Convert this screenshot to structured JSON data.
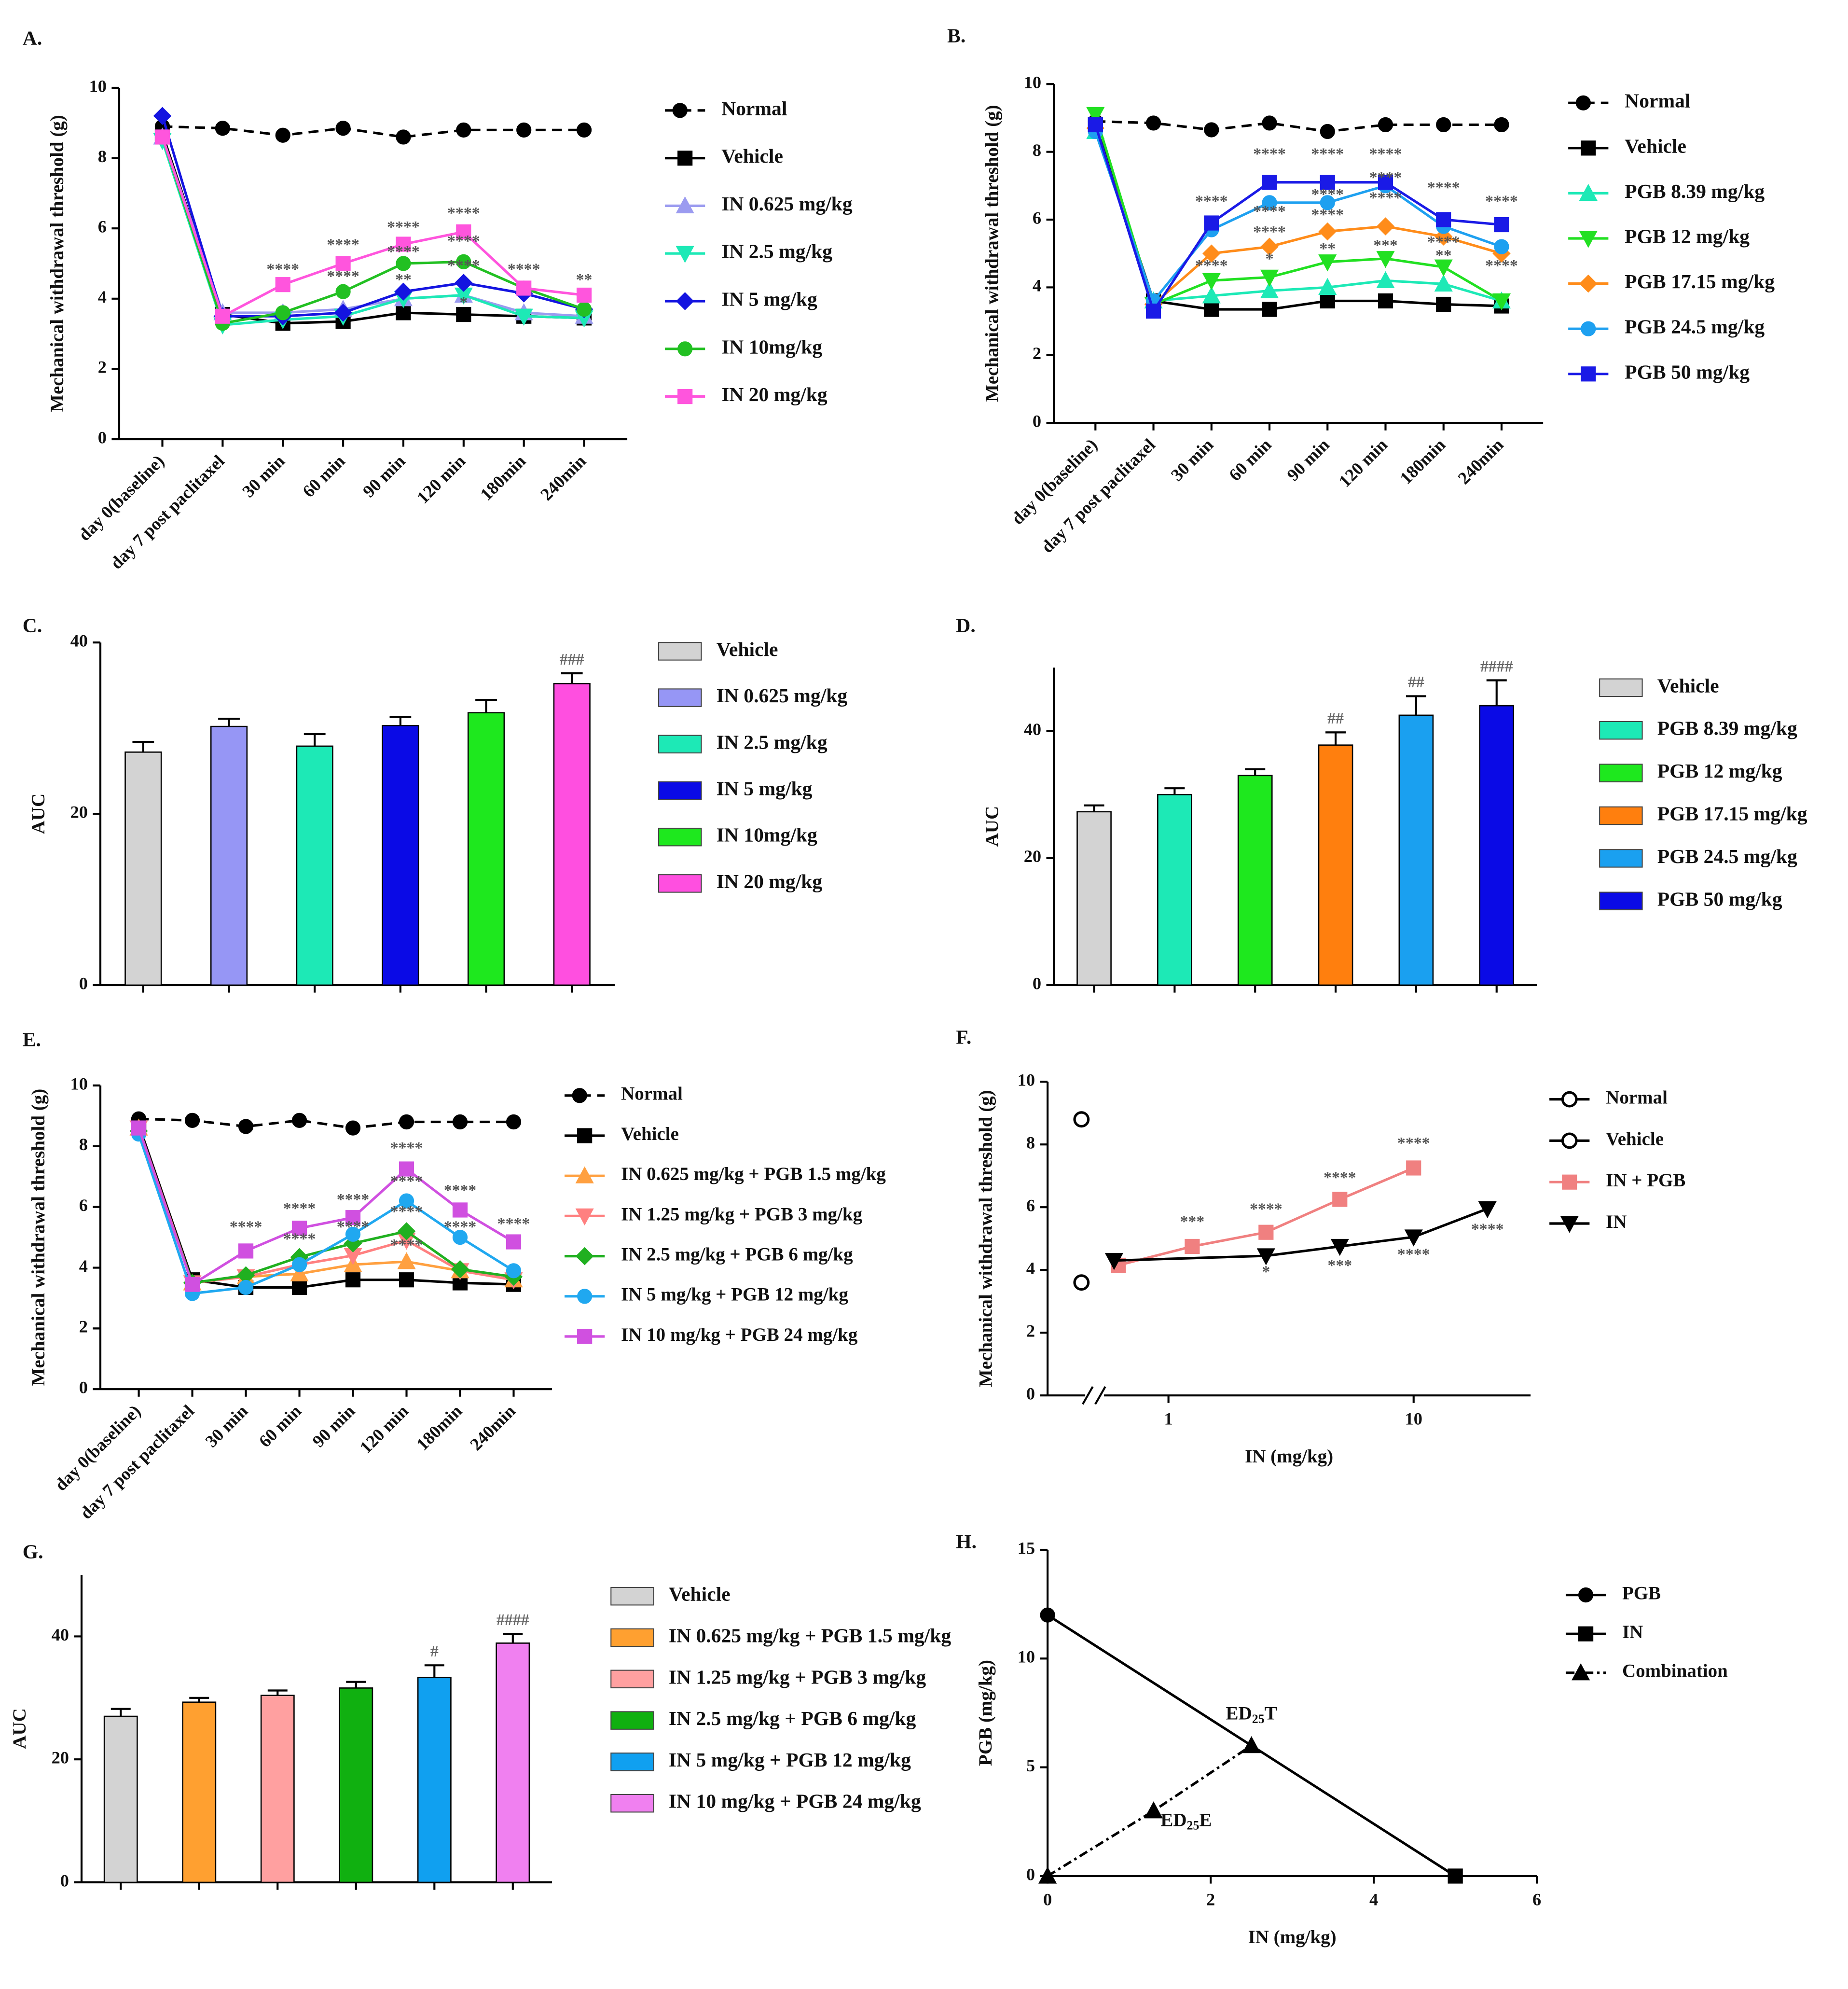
{
  "chart_data": [
    {
      "type": "line",
      "label": "A.",
      "ylabel": "Mechanical withdrawal threshold (g)",
      "categories": [
        "day 0(baseline)",
        "day 7 post paclitaxel",
        "30 min",
        "60 min",
        "90 min",
        "120 min",
        "180min",
        "240min"
      ],
      "ylim": [
        0,
        10
      ],
      "yticks": [
        0,
        2,
        4,
        6,
        8,
        10
      ],
      "series": [
        {
          "name": "Normal",
          "color": "#000000",
          "marker": "circle",
          "dash": "dashed",
          "values": [
            8.9,
            8.85,
            8.65,
            8.85,
            8.6,
            8.8,
            8.8,
            8.8
          ]
        },
        {
          "name": "Vehicle",
          "color": "#000000",
          "marker": "square",
          "values": [
            8.7,
            3.55,
            3.3,
            3.35,
            3.6,
            3.55,
            3.5,
            3.45
          ]
        },
        {
          "name": "IN 0.625 mg/kg",
          "color": "#9b9bf0",
          "marker": "triangle",
          "values": [
            8.6,
            3.6,
            3.6,
            3.7,
            4.0,
            4.1,
            3.6,
            3.5
          ]
        },
        {
          "name": "IN 2.5 mg/kg",
          "color": "#1de9b6",
          "marker": "down",
          "values": [
            8.5,
            3.25,
            3.4,
            3.5,
            4.0,
            4.1,
            3.5,
            3.45
          ]
        },
        {
          "name": "IN 5 mg/kg",
          "color": "#1414e0",
          "marker": "diamond",
          "values": [
            9.2,
            3.5,
            3.5,
            3.6,
            4.2,
            4.45,
            4.15,
            3.7
          ]
        },
        {
          "name": "IN 10mg/kg",
          "color": "#22c022",
          "marker": "circle",
          "values": [
            8.6,
            3.3,
            3.6,
            4.2,
            5.0,
            5.05,
            4.3,
            3.7
          ]
        },
        {
          "name": "IN 20 mg/kg",
          "color": "#ff55dd",
          "marker": "square",
          "values": [
            8.6,
            3.5,
            4.4,
            5.0,
            5.55,
            5.9,
            4.3,
            4.1
          ]
        }
      ],
      "annotations": [
        {
          "text": "****",
          "x": "30 min",
          "y": 4.8
        },
        {
          "text": "****",
          "x": "60 min",
          "y": 5.5
        },
        {
          "text": "****",
          "x": "60 min",
          "y": 4.6
        },
        {
          "text": "****",
          "x": "90 min",
          "y": 6.0
        },
        {
          "text": "****",
          "x": "90 min",
          "y": 5.3
        },
        {
          "text": "**",
          "x": "90 min",
          "y": 4.5
        },
        {
          "text": "****",
          "x": "120 min",
          "y": 6.4
        },
        {
          "text": "****",
          "x": "120 min",
          "y": 5.6
        },
        {
          "text": "****",
          "x": "120 min",
          "y": 4.9
        },
        {
          "text": "*",
          "x": "120 min",
          "y": 3.85
        },
        {
          "text": "****",
          "x": "180min",
          "y": 4.8
        },
        {
          "text": "**",
          "x": "240min",
          "y": 4.5
        }
      ]
    },
    {
      "type": "line",
      "label": "B.",
      "ylabel": "Mechanical withdrawal threshold (g)",
      "categories": [
        "day 0(baseline)",
        "day 7 post paclitaxel",
        "30 min",
        "60 min",
        "90 min",
        "120 min",
        "180min",
        "240min"
      ],
      "ylim": [
        0,
        10
      ],
      "yticks": [
        0,
        2,
        4,
        6,
        8,
        10
      ],
      "series": [
        {
          "name": "Normal",
          "color": "#000000",
          "marker": "circle",
          "dash": "dashed",
          "values": [
            8.9,
            8.85,
            8.65,
            8.85,
            8.6,
            8.8,
            8.8,
            8.8
          ]
        },
        {
          "name": "Vehicle",
          "color": "#000000",
          "marker": "square",
          "values": [
            8.8,
            3.6,
            3.35,
            3.35,
            3.6,
            3.6,
            3.5,
            3.45
          ]
        },
        {
          "name": "PGB 8.39 mg/kg",
          "color": "#1de9b6",
          "marker": "triangle",
          "values": [
            8.6,
            3.6,
            3.75,
            3.9,
            4.0,
            4.2,
            4.1,
            3.6
          ]
        },
        {
          "name": "PGB 12 mg/kg",
          "color": "#22e022",
          "marker": "down",
          "values": [
            9.1,
            3.5,
            4.2,
            4.3,
            4.75,
            4.85,
            4.6,
            3.6
          ]
        },
        {
          "name": "PGB 17.15 mg/kg",
          "color": "#ff8c1a",
          "marker": "diamond",
          "values": [
            8.7,
            3.5,
            5.0,
            5.2,
            5.65,
            5.8,
            5.5,
            5.0
          ]
        },
        {
          "name": "PGB 24.5 mg/kg",
          "color": "#1ea0f0",
          "marker": "circle",
          "values": [
            8.6,
            3.6,
            5.7,
            6.5,
            6.5,
            7.0,
            5.8,
            5.2
          ]
        },
        {
          "name": "PGB 50 mg/kg",
          "color": "#1a1ae6",
          "marker": "square",
          "values": [
            8.8,
            3.3,
            5.9,
            7.1,
            7.1,
            7.1,
            6.0,
            5.85
          ]
        }
      ],
      "annotations": [
        {
          "text": "****",
          "x": "30 min",
          "y": 6.5
        },
        {
          "text": "****",
          "x": "30 min",
          "y": 4.6
        },
        {
          "text": "****",
          "x": "60 min",
          "y": 7.9
        },
        {
          "text": "****",
          "x": "60 min",
          "y": 6.2
        },
        {
          "text": "****",
          "x": "60 min",
          "y": 5.6
        },
        {
          "text": "*",
          "x": "60 min",
          "y": 4.8
        },
        {
          "text": "****",
          "x": "90 min",
          "y": 7.9
        },
        {
          "text": "****",
          "x": "90 min",
          "y": 6.7
        },
        {
          "text": "****",
          "x": "90 min",
          "y": 6.1
        },
        {
          "text": "**",
          "x": "90 min",
          "y": 5.1
        },
        {
          "text": "****",
          "x": "120 min",
          "y": 7.9
        },
        {
          "text": "****",
          "x": "120 min",
          "y": 7.2
        },
        {
          "text": "****",
          "x": "120 min",
          "y": 6.6
        },
        {
          "text": "***",
          "x": "120 min",
          "y": 5.2
        },
        {
          "text": "****",
          "x": "180min",
          "y": 6.9
        },
        {
          "text": "****",
          "x": "180min",
          "y": 5.3
        },
        {
          "text": "**",
          "x": "180min",
          "y": 4.9
        },
        {
          "text": "****",
          "x": "240min",
          "y": 6.5
        },
        {
          "text": "****",
          "x": "240min",
          "y": 4.6
        }
      ]
    },
    {
      "type": "bar",
      "label": "C.",
      "ylabel": "AUC",
      "categories": [
        "Vehicle",
        "IN 0.625 mg/kg",
        "IN 2.5 mg/kg",
        "IN 5 mg/kg",
        "IN 10mg/kg",
        "IN 20 mg/kg"
      ],
      "values": [
        27.2,
        30.2,
        27.9,
        30.3,
        31.8,
        35.2
      ],
      "errors": [
        1.2,
        0.9,
        1.4,
        1.0,
        1.5,
        1.2
      ],
      "colors": [
        "#d3d3d3",
        "#9696f5",
        "#1de9b6",
        "#0a0ae6",
        "#1ee81e",
        "#ff4fe0"
      ],
      "ylim": [
        0,
        40
      ],
      "yticks": [
        0,
        20,
        40
      ],
      "annotations": [
        {
          "text": "###",
          "x": "IN 20 mg/kg"
        }
      ]
    },
    {
      "type": "bar",
      "label": "D.",
      "ylabel": "AUC",
      "categories": [
        "Vehicle",
        "PGB 8.39 mg/kg",
        "PGB 12 mg/kg",
        "PGB 17.15 mg/kg",
        "PGB 24.5 mg/kg",
        "PGB 50 mg/kg"
      ],
      "values": [
        27.3,
        30.0,
        33.0,
        37.8,
        42.5,
        44.0
      ],
      "errors": [
        1.0,
        1.0,
        1.0,
        2.0,
        3.0,
        4.0
      ],
      "colors": [
        "#d3d3d3",
        "#1de9b6",
        "#1ee81e",
        "#ff7f0e",
        "#1aa0f0",
        "#0a0ae6"
      ],
      "ylim": [
        0,
        50
      ],
      "yticks": [
        0,
        20,
        40
      ],
      "annotations": [
        {
          "text": "##",
          "x": "PGB 17.15 mg/kg"
        },
        {
          "text": "##",
          "x": "PGB 24.5 mg/kg"
        },
        {
          "text": "####",
          "x": "PGB 50 mg/kg"
        }
      ]
    },
    {
      "type": "line",
      "label": "E.",
      "ylabel": "Mechanical withdrawal threshold (g)",
      "categories": [
        "day 0(baseline)",
        "day 7 post paclitaxel",
        "30 min",
        "60 min",
        "90 min",
        "120 min",
        "180min",
        "240min"
      ],
      "ylim": [
        0,
        10
      ],
      "yticks": [
        0,
        2,
        4,
        6,
        8,
        10
      ],
      "series": [
        {
          "name": "Normal",
          "color": "#000000",
          "marker": "circle",
          "dash": "dashed",
          "values": [
            8.9,
            8.85,
            8.65,
            8.85,
            8.6,
            8.8,
            8.8,
            8.8
          ]
        },
        {
          "name": "Vehicle",
          "color": "#000000",
          "marker": "square",
          "values": [
            8.7,
            3.6,
            3.35,
            3.35,
            3.6,
            3.6,
            3.5,
            3.45
          ]
        },
        {
          "name": "IN 0.625 mg/kg + PGB 1.5 mg/kg",
          "color": "#ffa040",
          "marker": "triangle",
          "values": [
            8.6,
            3.5,
            3.7,
            3.8,
            4.1,
            4.2,
            3.9,
            3.6
          ]
        },
        {
          "name": "IN 1.25 mg/kg + PGB 3 mg/kg",
          "color": "#ff8080",
          "marker": "down",
          "values": [
            8.6,
            3.5,
            3.7,
            4.1,
            4.4,
            4.9,
            3.9,
            3.6
          ]
        },
        {
          "name": "IN 2.5 mg/kg + PGB 6 mg/kg",
          "color": "#20b020",
          "marker": "diamond",
          "values": [
            8.5,
            3.5,
            3.75,
            4.35,
            4.8,
            5.2,
            3.95,
            3.7
          ]
        },
        {
          "name": "IN 5 mg/kg + PGB 12 mg/kg",
          "color": "#20a8f0",
          "marker": "circle",
          "values": [
            8.4,
            3.15,
            3.35,
            4.1,
            5.1,
            6.2,
            5.0,
            3.9
          ]
        },
        {
          "name": "IN 10 mg/kg + PGB 24 mg/kg",
          "color": "#d050e0",
          "marker": "square",
          "values": [
            8.6,
            3.45,
            4.55,
            5.3,
            5.65,
            7.25,
            5.9,
            4.85
          ]
        }
      ],
      "annotations": [
        {
          "text": "****",
          "x": "30 min",
          "y": 5.3
        },
        {
          "text": "****",
          "x": "60 min",
          "y": 5.9
        },
        {
          "text": "****",
          "x": "60 min",
          "y": 4.9
        },
        {
          "text": "****",
          "x": "90 min",
          "y": 6.2
        },
        {
          "text": "****",
          "x": "90 min",
          "y": 5.3
        },
        {
          "text": "****",
          "x": "120 min",
          "y": 7.9
        },
        {
          "text": "****",
          "x": "120 min",
          "y": 6.8
        },
        {
          "text": "****",
          "x": "120 min",
          "y": 5.8
        },
        {
          "text": "****",
          "x": "120 min",
          "y": 4.7
        },
        {
          "text": "****",
          "x": "180min",
          "y": 6.5
        },
        {
          "text": "****",
          "x": "180min",
          "y": 5.3
        },
        {
          "text": "****",
          "x": "240min",
          "y": 5.4
        }
      ]
    },
    {
      "type": "line",
      "label": "F.",
      "ylabel": "Mechanical withdrawal threshold (g)",
      "xlabel": "IN (mg/kg)",
      "xscale": "log",
      "x_break": true,
      "xlim": [
        0.6,
        30
      ],
      "xticks": [
        1,
        10
      ],
      "ylim": [
        0,
        10
      ],
      "yticks": [
        0,
        2,
        4,
        6,
        8,
        10
      ],
      "series": [
        {
          "name": "Normal",
          "color": "#000000",
          "marker": "circle",
          "open": true,
          "values": [
            8.8
          ]
        },
        {
          "name": "Vehicle",
          "color": "#000000",
          "marker": "circle",
          "open": true,
          "values": [
            3.6
          ]
        },
        {
          "name": "IN + PGB",
          "color": "#f08080",
          "marker": "square",
          "x": [
            0.625,
            1.25,
            2.5,
            5,
            10
          ],
          "values": [
            4.15,
            4.75,
            5.2,
            6.25,
            7.25
          ]
        },
        {
          "name": "IN",
          "color": "#000000",
          "marker": "down",
          "x": [
            0.6,
            2.5,
            5,
            10,
            20
          ],
          "values": [
            4.3,
            4.45,
            4.75,
            5.05,
            5.95
          ]
        }
      ],
      "annotations": [
        {
          "text": "***",
          "x": 1.25,
          "y": 5.5
        },
        {
          "text": "****",
          "x": 2.5,
          "y": 5.9
        },
        {
          "text": "****",
          "x": 5,
          "y": 6.9
        },
        {
          "text": "****",
          "x": 10,
          "y": 8.0
        },
        {
          "text": "*",
          "x": 2.5,
          "y": 3.9
        },
        {
          "text": "***",
          "x": 5,
          "y": 4.1
        },
        {
          "text": "****",
          "x": 10,
          "y": 4.45
        },
        {
          "text": "****",
          "x": 20,
          "y": 5.25
        }
      ]
    },
    {
      "type": "bar",
      "label": "G.",
      "ylabel": "AUC",
      "categories": [
        "Vehicle",
        "IN 0.625 mg/kg + PGB 1.5 mg/kg",
        "IN 1.25 mg/kg + PGB 3 mg/kg",
        "IN 2.5 mg/kg + PGB 6 mg/kg",
        "IN 5 mg/kg + PGB 12 mg/kg",
        "IN 10 mg/kg + PGB 24 mg/kg"
      ],
      "values": [
        27.0,
        29.3,
        30.4,
        31.6,
        33.3,
        38.9
      ],
      "errors": [
        1.2,
        0.7,
        0.8,
        1.0,
        2.0,
        1.5
      ],
      "colors": [
        "#d3d3d3",
        "#ffa030",
        "#ffa0a0",
        "#10b010",
        "#10a0f0",
        "#f080f0"
      ],
      "ylim": [
        0,
        50
      ],
      "yticks": [
        0,
        20,
        40
      ],
      "annotations": [
        {
          "text": "#",
          "x": "IN 5 mg/kg + PGB 12 mg/kg"
        },
        {
          "text": "####",
          "x": "IN 10 mg/kg + PGB 24 mg/kg"
        }
      ]
    },
    {
      "type": "line",
      "label": "H.",
      "ylabel": "PGB (mg/kg)",
      "xlabel": "IN (mg/kg)",
      "isobole": true,
      "xlim": [
        0,
        6
      ],
      "xticks": [
        0,
        2,
        4,
        6
      ],
      "ylim": [
        0,
        15
      ],
      "yticks": [
        0,
        5,
        10,
        15
      ],
      "series": [
        {
          "name": "PGB",
          "color": "#000000",
          "marker": "circle",
          "x": [
            0
          ],
          "values": [
            12
          ]
        },
        {
          "name": "IN",
          "color": "#000000",
          "marker": "square",
          "x": [
            5
          ],
          "values": [
            0
          ]
        },
        {
          "name": "Combination",
          "color": "#000000",
          "marker": "triangle",
          "dash": "dashdot",
          "x": [
            0,
            1.3,
            2.5
          ],
          "values": [
            0,
            3.0,
            6.0
          ]
        }
      ],
      "annotations": [
        {
          "text": "ED",
          "sub": "25",
          "tail": "T",
          "x": 2.5,
          "y": 7.4
        },
        {
          "text": "ED",
          "sub": "25",
          "tail": "E",
          "x": 1.7,
          "y": 2.5
        }
      ]
    }
  ]
}
